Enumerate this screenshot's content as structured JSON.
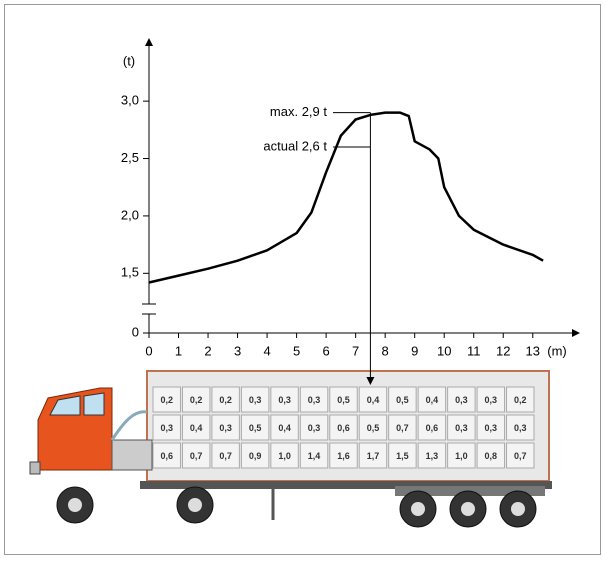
{
  "chart_data": {
    "type": "line",
    "y_label": "(t)",
    "x_label": "(m)",
    "x": [
      0,
      1,
      2,
      3,
      4,
      5,
      5.5,
      6,
      6.5,
      7,
      7.5,
      8,
      8.5,
      8.8,
      9,
      9.5,
      9.8,
      10,
      10.5,
      11,
      12,
      13,
      13.35
    ],
    "values": [
      1.42,
      1.48,
      1.54,
      1.61,
      1.7,
      1.85,
      2.03,
      2.38,
      2.7,
      2.84,
      2.88,
      2.9,
      2.9,
      2.87,
      2.65,
      2.58,
      2.5,
      2.25,
      2.0,
      1.88,
      1.75,
      1.66,
      1.61
    ],
    "color": "#000000",
    "xlim": [
      0,
      14.6
    ],
    "xticks": [
      0,
      1,
      2,
      3,
      4,
      5,
      6,
      7,
      8,
      9,
      10,
      11,
      12,
      13
    ],
    "ylim": [
      0,
      3.55
    ],
    "axis_break": [
      0,
      1.25
    ],
    "yticks": [
      0,
      {
        "value": 1.5,
        "label": "1,5"
      },
      {
        "value": 2.0,
        "label": "2,0"
      },
      {
        "value": 2.5,
        "label": "2,5"
      },
      {
        "value": 3.0,
        "label": "3,0"
      }
    ],
    "marker_x": 7.5,
    "annotations": [
      {
        "text": "max. 2,9 t",
        "y": 2.9
      },
      {
        "text": "actual 2,6 t",
        "y": 2.6
      }
    ]
  },
  "truck_table": {
    "rows": [
      [
        "0,2",
        "0,2",
        "0,2",
        "0,3",
        "0,3",
        "0,3",
        "0,5",
        "0,4",
        "0,5",
        "0,4",
        "0,3",
        "0,3",
        "0,2"
      ],
      [
        "0,3",
        "0,4",
        "0,3",
        "0,5",
        "0,4",
        "0,3",
        "0,6",
        "0,5",
        "0,7",
        "0,6",
        "0,3",
        "0,3",
        "0,3"
      ],
      [
        "0,6",
        "0,7",
        "0,7",
        "0,9",
        "1,0",
        "1,4",
        "1,6",
        "1,7",
        "1,5",
        "1,3",
        "1,0",
        "0,8",
        "0,7"
      ]
    ]
  }
}
